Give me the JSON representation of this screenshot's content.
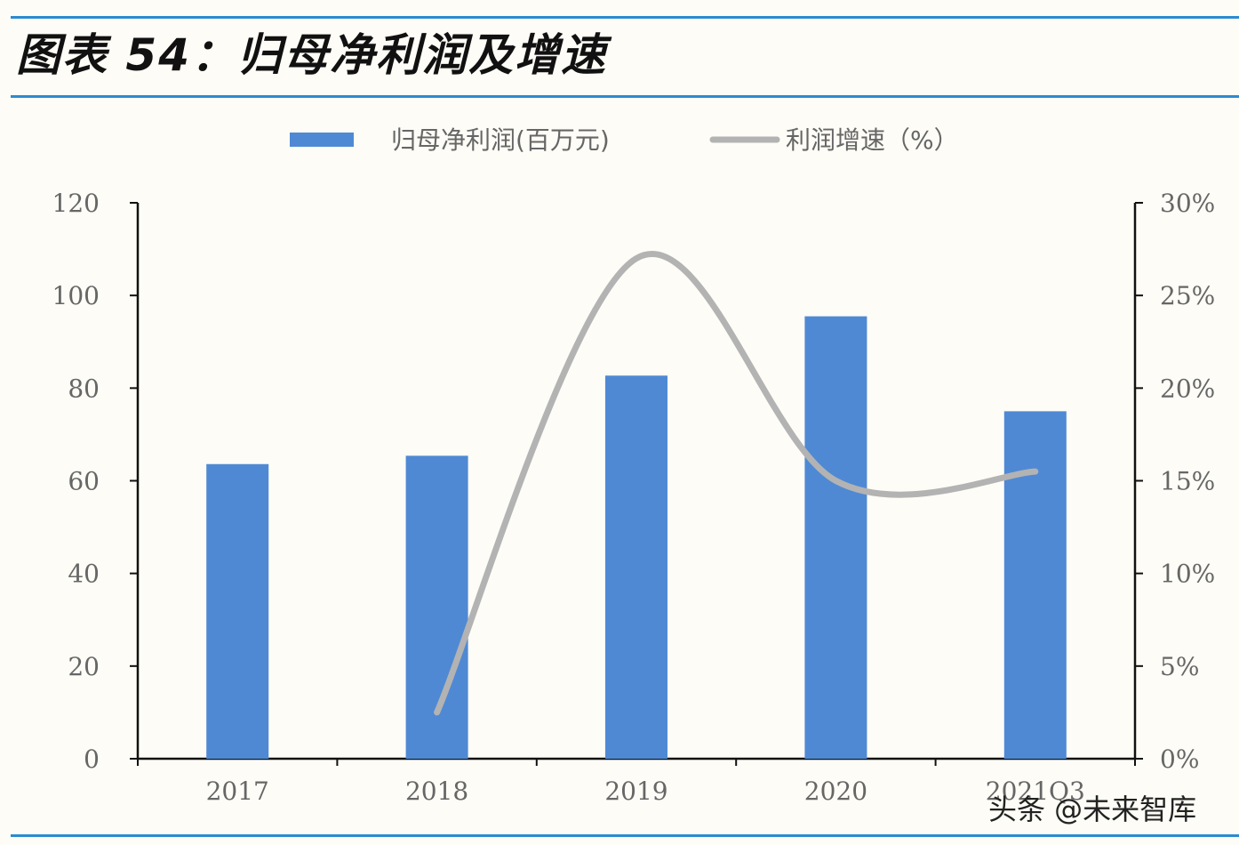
{
  "header": {
    "title": "图表 54：归母净利润及增速"
  },
  "watermark": "头条 @未来智库",
  "chart_data": {
    "type": "bar",
    "title": "图表 54：归母净利润及增速",
    "categories": [
      "2017",
      "2018",
      "2019",
      "2020",
      "2021Q3"
    ],
    "series": [
      {
        "name": "归母净利润(百万元)",
        "type": "bar",
        "axis": "left",
        "color": "#4f89d4",
        "values": [
          63.6,
          65.4,
          82.7,
          95.5,
          75.0
        ]
      },
      {
        "name": "利润增速（%）",
        "type": "line",
        "axis": "right",
        "color": "#b3b3b3",
        "values": [
          null,
          2.5,
          27.0,
          15.0,
          15.5
        ]
      }
    ],
    "ylim_left": [
      0,
      120
    ],
    "yticks_left": [
      "0",
      "20",
      "40",
      "60",
      "80",
      "100",
      "120"
    ],
    "ylim_right": [
      0,
      30
    ],
    "yticks_right": [
      "0%",
      "5%",
      "10%",
      "15%",
      "20%",
      "25%",
      "30%"
    ],
    "legend": "top-center",
    "grid": false
  }
}
